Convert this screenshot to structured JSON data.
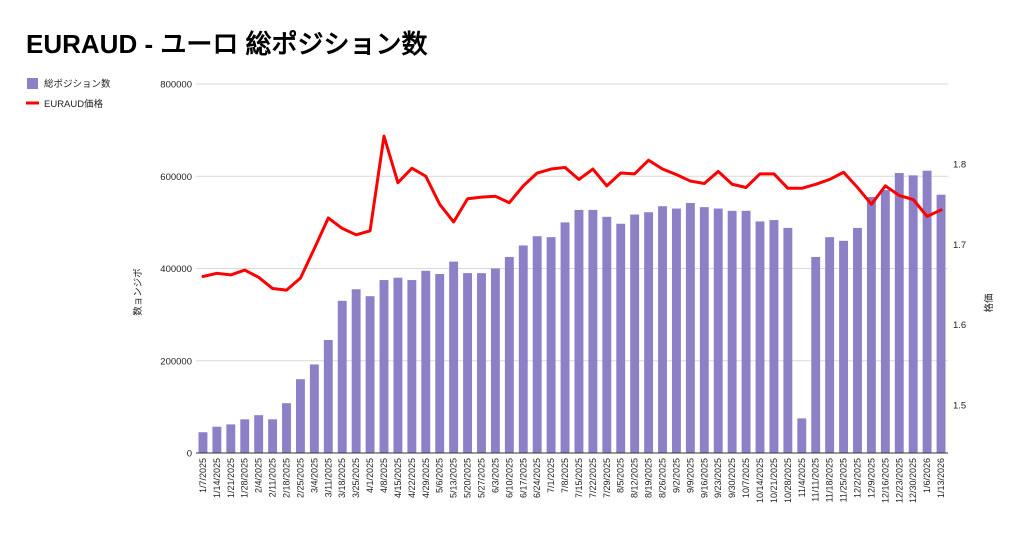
{
  "chart_data": {
    "type": "bar",
    "title": "EURAUD - ユーロ 総ポジション数",
    "categories": [
      "1/7/2025",
      "1/14/2025",
      "1/21/2025",
      "1/28/2025",
      "2/4/2025",
      "2/11/2025",
      "2/18/2025",
      "2/25/2025",
      "3/4/2025",
      "3/11/2025",
      "3/18/2025",
      "3/25/2025",
      "4/1/2025",
      "4/8/2025",
      "4/15/2025",
      "4/22/2025",
      "4/29/2025",
      "5/6/2025",
      "5/13/2025",
      "5/20/2025",
      "5/27/2025",
      "6/3/2025",
      "6/10/2025",
      "6/17/2025",
      "6/24/2025",
      "7/1/2025",
      "7/8/2025",
      "7/15/2025",
      "7/22/2025",
      "7/29/2025",
      "8/5/2025",
      "8/12/2025",
      "8/19/2025",
      "8/26/2025",
      "9/2/2025",
      "9/9/2025",
      "9/16/2025",
      "9/23/2025",
      "9/30/2025",
      "10/7/2025",
      "10/14/2025",
      "10/21/2025",
      "10/28/2025",
      "11/4/2025",
      "11/11/2025",
      "11/18/2025",
      "11/25/2025",
      "12/2/2025",
      "12/9/2025",
      "12/16/2025",
      "12/23/2025",
      "12/30/2025",
      "1/6/2026",
      "1/13/2026"
    ],
    "series": [
      {
        "name": "総ポジション数",
        "type": "bar",
        "axis": "left",
        "color": "#8e80c7",
        "values": [
          45000,
          57000,
          62000,
          73000,
          82000,
          73000,
          108000,
          160000,
          192000,
          245000,
          330000,
          355000,
          340000,
          375000,
          380000,
          375000,
          395000,
          388000,
          415000,
          390000,
          390000,
          400000,
          425000,
          450000,
          470000,
          468000,
          500000,
          527000,
          527000,
          512000,
          497000,
          517000,
          522000,
          535000,
          530000,
          542000,
          533000,
          530000,
          525000,
          525000,
          502000,
          505000,
          488000,
          75000,
          425000,
          468000,
          460000,
          488000,
          555000,
          570000,
          607000,
          602000,
          612000,
          560000
        ]
      },
      {
        "name": "EURAUD価格",
        "type": "line",
        "axis": "right",
        "color": "#ff0000",
        "values": [
          1.66,
          1.664,
          1.662,
          1.668,
          1.659,
          1.645,
          1.643,
          1.658,
          1.695,
          1.733,
          1.72,
          1.712,
          1.717,
          1.835,
          1.777,
          1.795,
          1.785,
          1.75,
          1.728,
          1.757,
          1.759,
          1.76,
          1.752,
          1.773,
          1.789,
          1.794,
          1.796,
          1.781,
          1.794,
          1.773,
          1.789,
          1.788,
          1.805,
          1.794,
          1.787,
          1.779,
          1.776,
          1.791,
          1.775,
          1.771,
          1.788,
          1.788,
          1.77,
          1.77,
          1.775,
          1.781,
          1.79,
          1.771,
          1.75,
          1.773,
          1.761,
          1.756,
          1.735,
          1.743
        ]
      }
    ],
    "y_left": {
      "label": "数ョンジボ",
      "range": [
        0,
        800000
      ],
      "ticks": [
        "0",
        "200000",
        "400000",
        "600000",
        "800000"
      ],
      "tick_values": [
        0,
        200000,
        400000,
        600000,
        800000
      ]
    },
    "y_right": {
      "label": "格価",
      "range": [
        1.44,
        1.9
      ],
      "ticks": [
        "1.5",
        "1.6",
        "1.7",
        "1.8"
      ],
      "tick_values": [
        1.5,
        1.6,
        1.7,
        1.8
      ]
    },
    "legend": {
      "placement": "top-left",
      "entries": [
        "総ポジション数",
        "EURAUD価格"
      ]
    },
    "grid": true
  }
}
